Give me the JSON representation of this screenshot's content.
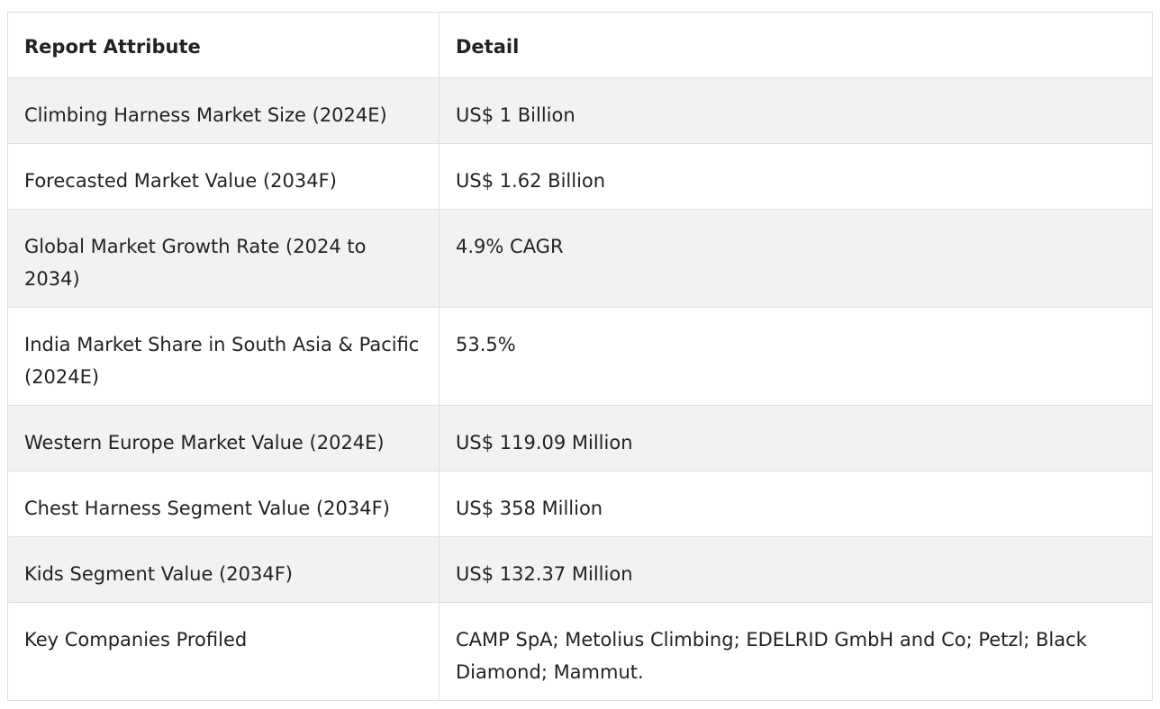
{
  "table": {
    "headers": [
      "Report Attribute",
      "Detail"
    ],
    "rows": [
      {
        "attribute": "Climbing Harness Market Size (2024E)",
        "detail": "US$ 1 Billion"
      },
      {
        "attribute": "Forecasted Market Value (2034F)",
        "detail": "US$ 1.62 Billion"
      },
      {
        "attribute": "Global Market Growth Rate (2024 to 2034)",
        "detail": "4.9% CAGR"
      },
      {
        "attribute": "India Market Share in South Asia & Pacific (2024E)",
        "detail": "53.5%"
      },
      {
        "attribute": "Western Europe Market Value (2024E)",
        "detail": "US$ 119.09 Million"
      },
      {
        "attribute": "Chest Harness Segment Value (2034F)",
        "detail": "US$ 358 Million"
      },
      {
        "attribute": "Kids Segment Value (2034F)",
        "detail": "US$ 132.37 Million"
      },
      {
        "attribute": "Key Companies Profiled",
        "detail": "CAMP SpA; Metolius Climbing; EDELRID GmbH and Co; Petzl; Black Diamond; Mammut."
      }
    ]
  }
}
